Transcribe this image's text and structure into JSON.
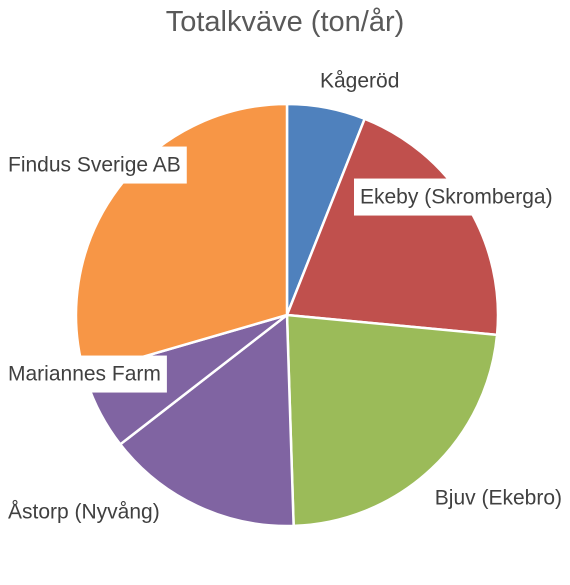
{
  "chart_data": {
    "type": "pie",
    "title": "Totalkväve (ton/år)",
    "slices": [
      {
        "label": "Kågeröd",
        "value": 6,
        "color": "#4F81BD"
      },
      {
        "label": "Ekeby (Skromberga)",
        "value": 20.5,
        "color": "#C0504D"
      },
      {
        "label": "Bjuv (Ekebro)",
        "value": 23,
        "color": "#9BBB59"
      },
      {
        "label": "Åstorp (Nyvång)",
        "value": 15,
        "color": "#8064A2"
      },
      {
        "label": "Mariannes Farm",
        "value": 6,
        "color": "#8064A2"
      },
      {
        "label": "Findus Sverige AB",
        "value": 29.5,
        "color": "#F79646"
      }
    ],
    "legend": "none",
    "data_labels": "category names"
  }
}
